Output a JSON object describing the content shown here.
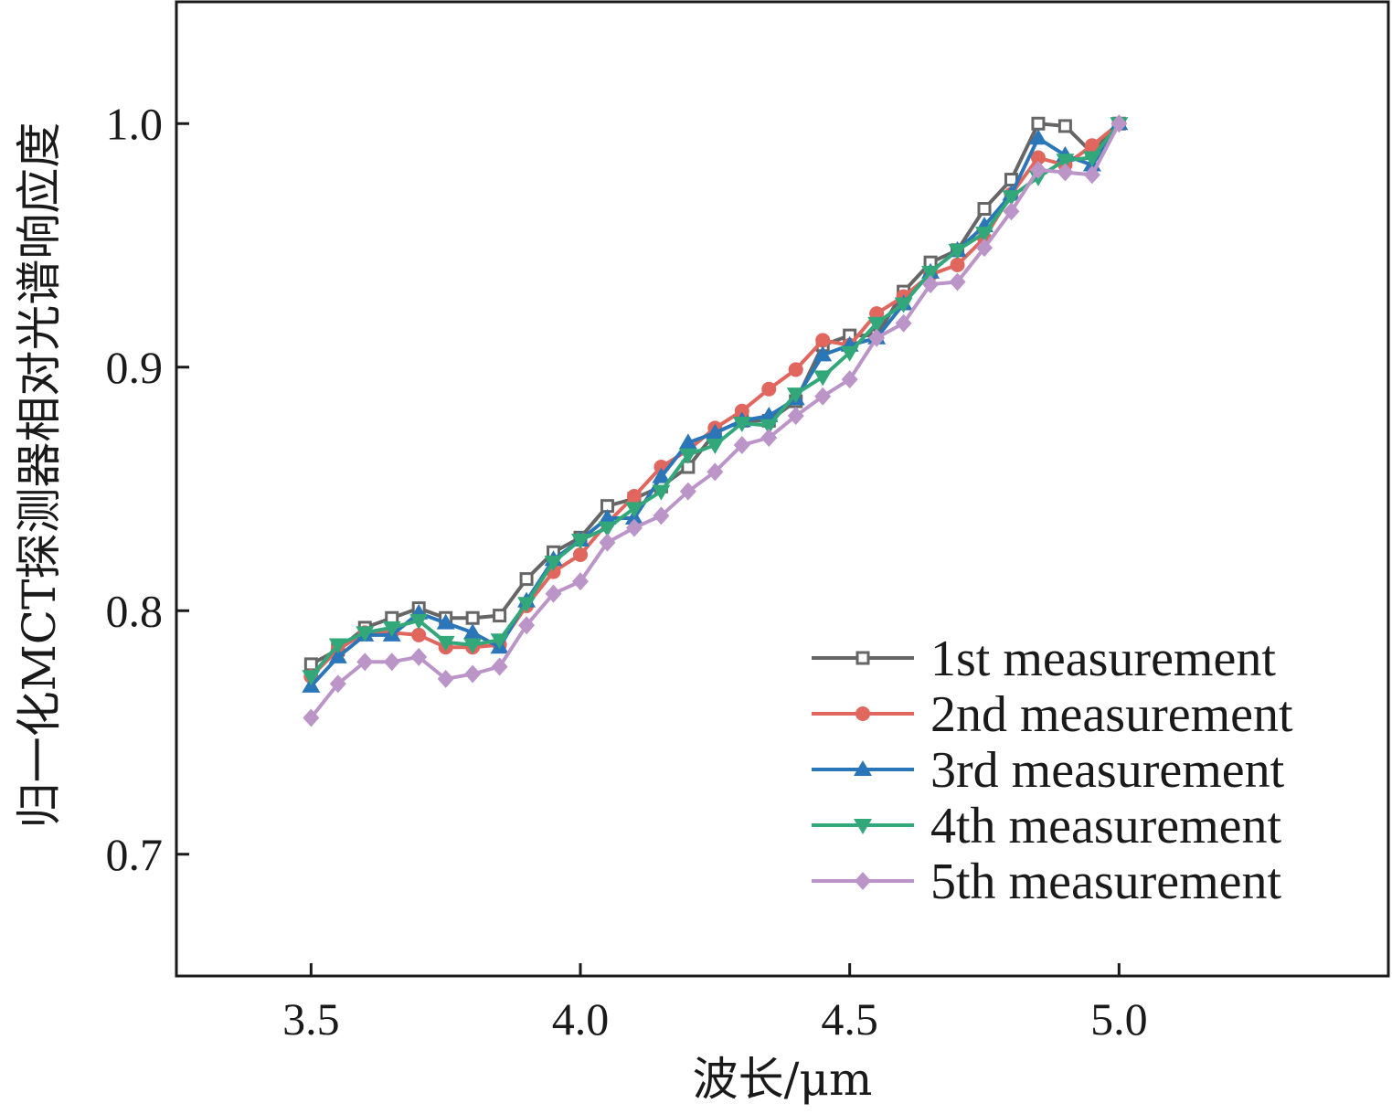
{
  "chart_data": {
    "type": "line",
    "xlabel": "波长/μm",
    "ylabel": "归一化MCT探测器相对光谱响应度",
    "xlim": [
      3.25,
      5.5
    ],
    "ylim": [
      0.65,
      1.05
    ],
    "xticks": [
      "3.5",
      "4.0",
      "4.5",
      "5.0"
    ],
    "yticks": [
      "0.7",
      "0.8",
      "0.9",
      "1.0"
    ],
    "grid": false,
    "legend_position": "bottom-right",
    "x": [
      3.5,
      3.55,
      3.6,
      3.65,
      3.7,
      3.75,
      3.8,
      3.85,
      3.9,
      3.95,
      4.0,
      4.05,
      4.1,
      4.15,
      4.2,
      4.25,
      4.3,
      4.35,
      4.4,
      4.45,
      4.5,
      4.55,
      4.6,
      4.65,
      4.7,
      4.75,
      4.8,
      4.85,
      4.9,
      4.95,
      5.0
    ],
    "series": [
      {
        "name": "1st measurement",
        "color": "#666666",
        "marker": "square",
        "values": [
          0.778,
          0.784,
          0.793,
          0.797,
          0.801,
          0.797,
          0.797,
          0.798,
          0.813,
          0.824,
          0.83,
          0.843,
          0.846,
          0.851,
          0.859,
          0.873,
          0.878,
          0.878,
          0.886,
          0.909,
          0.913,
          0.913,
          0.931,
          0.943,
          0.948,
          0.965,
          0.977,
          1.0,
          0.999,
          0.988,
          1.0
        ]
      },
      {
        "name": "2nd measurement",
        "color": "#e0665e",
        "marker": "circle",
        "values": [
          0.773,
          0.784,
          0.791,
          0.791,
          0.79,
          0.785,
          0.785,
          0.786,
          0.802,
          0.816,
          0.823,
          0.836,
          0.847,
          0.859,
          0.866,
          0.875,
          0.882,
          0.891,
          0.899,
          0.911,
          0.909,
          0.922,
          0.929,
          0.938,
          0.942,
          0.953,
          0.971,
          0.986,
          0.983,
          0.991,
          1.0
        ]
      },
      {
        "name": "3rd measurement",
        "color": "#2a76b8",
        "marker": "triangle-up",
        "values": [
          0.769,
          0.781,
          0.79,
          0.79,
          0.799,
          0.795,
          0.791,
          0.785,
          0.804,
          0.821,
          0.829,
          0.838,
          0.838,
          0.855,
          0.869,
          0.873,
          0.878,
          0.88,
          0.887,
          0.905,
          0.909,
          0.912,
          0.926,
          0.939,
          0.948,
          0.958,
          0.971,
          0.994,
          0.987,
          0.983,
          1.0
        ]
      },
      {
        "name": "4th measurement",
        "color": "#32a87a",
        "marker": "triangle-down",
        "values": [
          0.773,
          0.786,
          0.791,
          0.793,
          0.796,
          0.787,
          0.786,
          0.788,
          0.803,
          0.82,
          0.829,
          0.834,
          0.842,
          0.849,
          0.864,
          0.868,
          0.877,
          0.876,
          0.889,
          0.896,
          0.906,
          0.918,
          0.926,
          0.939,
          0.948,
          0.955,
          0.97,
          0.978,
          0.985,
          0.986,
          1.0
        ]
      },
      {
        "name": "5th measurement",
        "color": "#bb95c8",
        "marker": "diamond",
        "values": [
          0.756,
          0.77,
          0.779,
          0.779,
          0.781,
          0.772,
          0.774,
          0.777,
          0.794,
          0.807,
          0.812,
          0.828,
          0.834,
          0.839,
          0.849,
          0.857,
          0.868,
          0.871,
          0.88,
          0.888,
          0.895,
          0.912,
          0.918,
          0.934,
          0.935,
          0.949,
          0.964,
          0.981,
          0.98,
          0.979,
          1.0
        ]
      }
    ]
  }
}
